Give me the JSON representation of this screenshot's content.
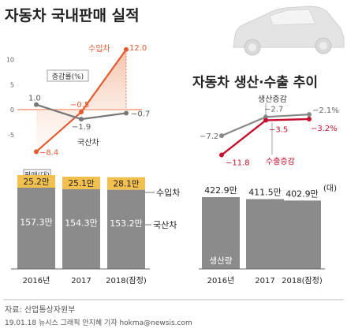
{
  "titles": {
    "left": "자동차 국내판매 실적",
    "right": "자동차 생산·수출 추이"
  },
  "source": "자료: 산업통상자원부",
  "credit": "19.01.18 뉴시스 그래픽 안지혜 기자 hokma@newsis.com",
  "colors": {
    "import": "#e65a2f",
    "domestic": "#777777",
    "bar": "#8b8b8b",
    "bar_top": "#f2c04f",
    "export": "#c8102e",
    "production": "#888888"
  },
  "chart_data": [
    {
      "id": "growth-left",
      "type": "line",
      "x": [
        "2016년",
        "2017",
        "2018(잠정)"
      ],
      "ylabel": "증감률(%)",
      "ylim": [
        -10,
        12
      ],
      "yticks": [
        10,
        5,
        0,
        -5
      ],
      "series": [
        {
          "name": "수입차",
          "values": [
            -8.4,
            -0.5,
            12.0
          ],
          "labels": [
            "−8.4",
            "−0.5",
            "12.0"
          ],
          "color": "#e65a2f"
        },
        {
          "name": "국산차",
          "values": [
            1.0,
            -1.9,
            -0.7
          ],
          "labels": [
            "1.0",
            "−1.9",
            "−0.7"
          ],
          "color": "#777777"
        }
      ]
    },
    {
      "id": "sales-bars",
      "type": "bar",
      "stacked": true,
      "categories": [
        "2016년",
        "2017",
        "2018(잠정)"
      ],
      "unit_label": "판매(대)",
      "series": [
        {
          "name": "국산차",
          "values": [
            157.3,
            154.3,
            153.2
          ],
          "labels": [
            "157.3만",
            "154.3만",
            "153.2만"
          ],
          "color": "#8b8b8b"
        },
        {
          "name": "수입차",
          "values": [
            25.2,
            25.1,
            28.1
          ],
          "labels": [
            "25.2만",
            "25.1만",
            "28.1만"
          ],
          "color": "#f2c04f"
        }
      ]
    },
    {
      "id": "growth-right",
      "type": "line",
      "x": [
        "2016년",
        "2017",
        "2018(잠정)"
      ],
      "ylim": [
        -13,
        1
      ],
      "series": [
        {
          "name": "생산증감",
          "values": [
            -7.2,
            -2.7,
            -2.1
          ],
          "labels": [
            "−7.2",
            "−2.7",
            "−2.1%"
          ],
          "color": "#888888"
        },
        {
          "name": "수출증감",
          "values": [
            -11.8,
            -3.5,
            -3.2
          ],
          "labels": [
            "−11.8",
            "−3.5",
            "−3.2%"
          ],
          "color": "#c8102e"
        }
      ]
    },
    {
      "id": "production-bars",
      "type": "bar",
      "categories": [
        "2016년",
        "2017",
        "2018(잠정)"
      ],
      "unit_label": "(대)",
      "series_label": "생산량",
      "series": [
        {
          "name": "생산량",
          "values": [
            422.9,
            411.5,
            402.9
          ],
          "labels": [
            "422.9만",
            "411.5만",
            "402.9만"
          ],
          "color": "#8b8b8b"
        }
      ]
    }
  ]
}
